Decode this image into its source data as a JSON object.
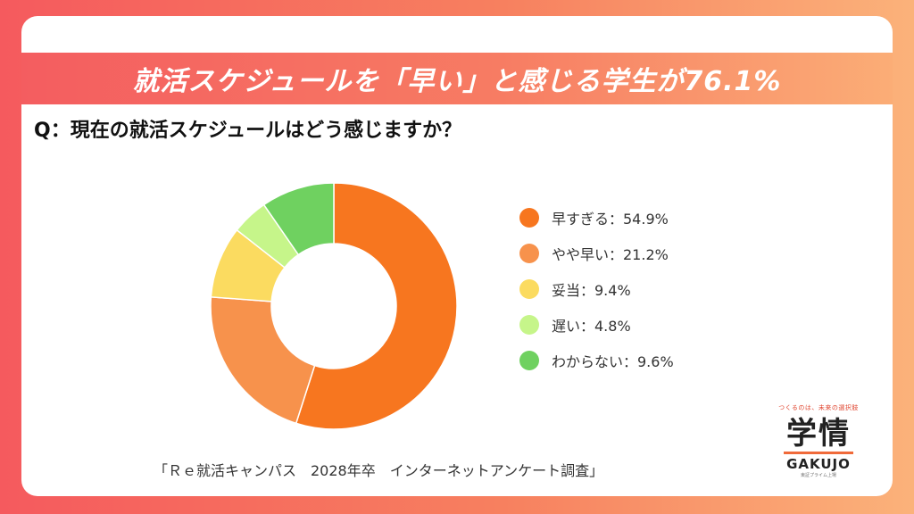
{
  "banner": {
    "title": "就活スケジュールを「早い」と感じる学生が76.1%"
  },
  "question": "Q：現在の就活スケジュールはどう感じますか？",
  "chart_data": {
    "type": "pie",
    "donut": true,
    "slices": [
      {
        "label": "早すぎる：54.9%",
        "value": 54.9,
        "color": "#f7761f"
      },
      {
        "label": "やや早い：21.2%",
        "value": 21.2,
        "color": "#f7924c"
      },
      {
        "label": "妥当：9.4%",
        "value": 9.4,
        "color": "#fbdb60"
      },
      {
        "label": "遅い：4.8%",
        "value": 4.8,
        "color": "#c6f58a"
      },
      {
        "label": "わからない：9.6%",
        "value": 9.6,
        "color": "#6fd160"
      }
    ],
    "legend_position": "right"
  },
  "source": "「Ｒｅ就活キャンパス　2028年卒　インターネットアンケート調査」",
  "logo": {
    "tagline": "つくるのは、未来の選択肢",
    "main": "学情",
    "english": "GAKUJO",
    "sub": "東証プライム上場"
  }
}
